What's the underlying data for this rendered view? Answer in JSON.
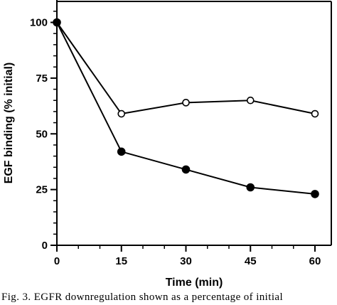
{
  "chart_data": {
    "type": "line",
    "xlabel": "Time (min)",
    "ylabel": "EGF binding (% initial)",
    "x": [
      0,
      15,
      30,
      45,
      60
    ],
    "xticks": [
      0,
      15,
      30,
      45,
      60
    ],
    "yticks": [
      0,
      25,
      50,
      75,
      100
    ],
    "xlim": [
      0,
      60
    ],
    "ylim": [
      0,
      110
    ],
    "grid": false,
    "series": [
      {
        "marker": "open-circle",
        "values": [
          100,
          59,
          64,
          65,
          59
        ]
      },
      {
        "marker": "filled-circle",
        "values": [
          100,
          42,
          34,
          26,
          23
        ]
      }
    ]
  },
  "caption": "Fig. 3. EGFR downregulation shown as a percentage of initial"
}
